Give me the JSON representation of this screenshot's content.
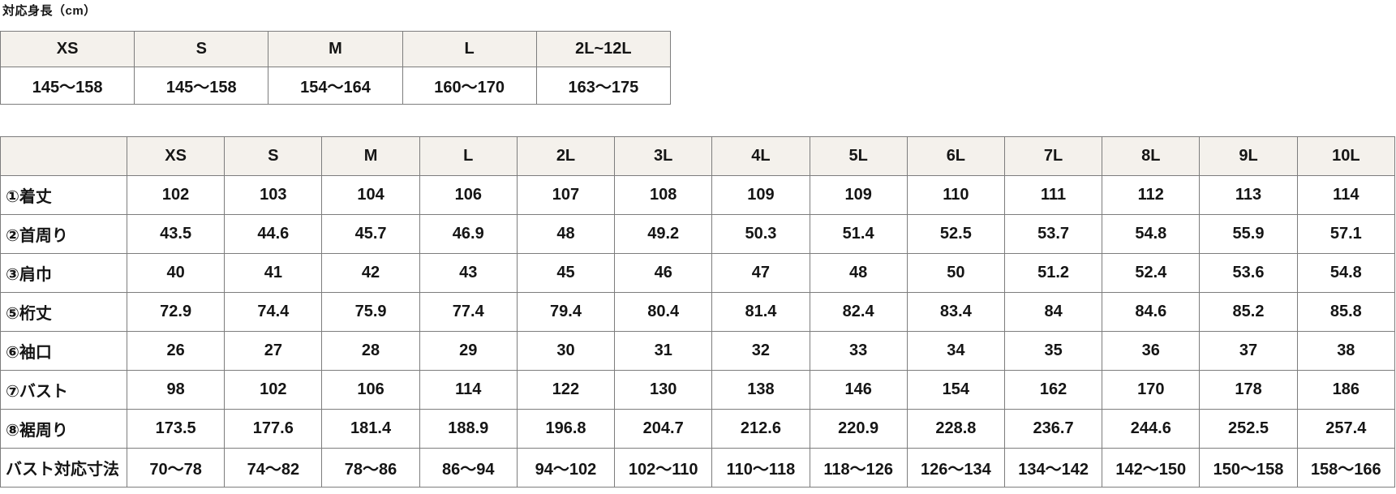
{
  "page": {
    "title": "対応身長（cm）"
  },
  "colors": {
    "header_bg": "#f4f1ec",
    "border": "#7d7d7d",
    "text": "#151515",
    "background": "#ffffff"
  },
  "height_table": {
    "headers": [
      "XS",
      "S",
      "M",
      "L",
      "2L~12L"
    ],
    "values": [
      "145〜158",
      "145〜158",
      "154〜164",
      "160〜170",
      "163〜175"
    ]
  },
  "size_table": {
    "corner_label": "",
    "columns": [
      "XS",
      "S",
      "M",
      "L",
      "2L",
      "3L",
      "4L",
      "5L",
      "6L",
      "7L",
      "8L",
      "9L",
      "10L"
    ],
    "rows": [
      {
        "label": "①着丈",
        "values": [
          "102",
          "103",
          "104",
          "106",
          "107",
          "108",
          "109",
          "109",
          "110",
          "111",
          "112",
          "113",
          "114"
        ]
      },
      {
        "label": "②首周り",
        "values": [
          "43.5",
          "44.6",
          "45.7",
          "46.9",
          "48",
          "49.2",
          "50.3",
          "51.4",
          "52.5",
          "53.7",
          "54.8",
          "55.9",
          "57.1"
        ]
      },
      {
        "label": "③肩巾",
        "values": [
          "40",
          "41",
          "42",
          "43",
          "45",
          "46",
          "47",
          "48",
          "50",
          "51.2",
          "52.4",
          "53.6",
          "54.8"
        ]
      },
      {
        "label": "⑤桁丈",
        "values": [
          "72.9",
          "74.4",
          "75.9",
          "77.4",
          "79.4",
          "80.4",
          "81.4",
          "82.4",
          "83.4",
          "84",
          "84.6",
          "85.2",
          "85.8"
        ]
      },
      {
        "label": "⑥袖口",
        "values": [
          "26",
          "27",
          "28",
          "29",
          "30",
          "31",
          "32",
          "33",
          "34",
          "35",
          "36",
          "37",
          "38"
        ]
      },
      {
        "label": "⑦バスト",
        "values": [
          "98",
          "102",
          "106",
          "114",
          "122",
          "130",
          "138",
          "146",
          "154",
          "162",
          "170",
          "178",
          "186"
        ]
      },
      {
        "label": "⑧裾周り",
        "values": [
          "173.5",
          "177.6",
          "181.4",
          "188.9",
          "196.8",
          "204.7",
          "212.6",
          "220.9",
          "228.8",
          "236.7",
          "244.6",
          "252.5",
          "257.4"
        ]
      },
      {
        "label": "バスト対応寸法",
        "values": [
          "70〜78",
          "74〜82",
          "78〜86",
          "86〜94",
          "94〜102",
          "102〜110",
          "110〜118",
          "118〜126",
          "126〜134",
          "134〜142",
          "142〜150",
          "150〜158",
          "158〜166"
        ]
      }
    ]
  }
}
